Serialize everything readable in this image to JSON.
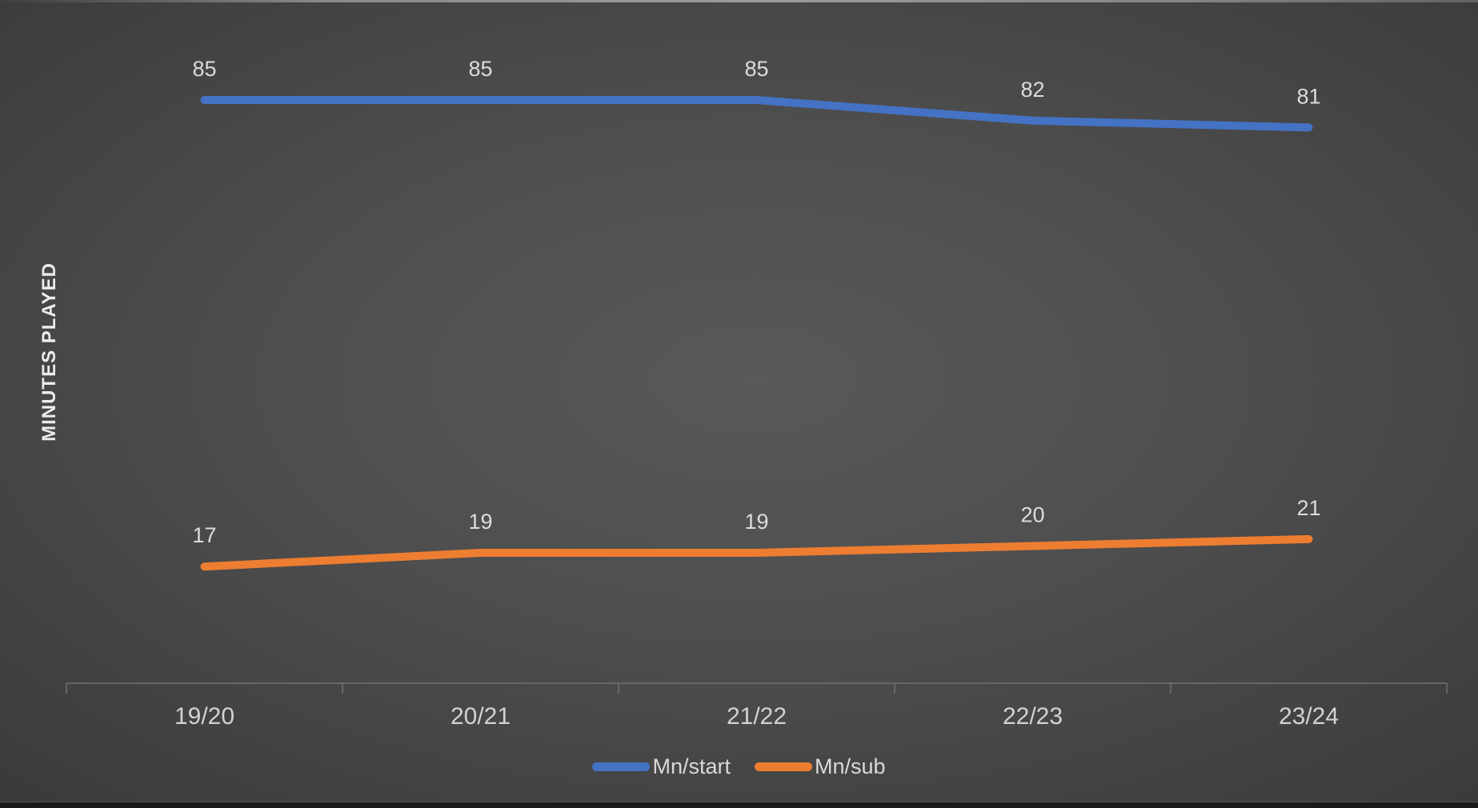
{
  "chart_data": {
    "type": "line",
    "categories": [
      "19/20",
      "20/21",
      "21/22",
      "22/23",
      "23/24"
    ],
    "series": [
      {
        "name": "Mn/start",
        "color": "#4472C4",
        "values": [
          85,
          85,
          85,
          82,
          81
        ]
      },
      {
        "name": "Mn/sub",
        "color": "#ED7D31",
        "values": [
          17,
          19,
          19,
          20,
          21
        ]
      }
    ],
    "title": "",
    "ylabel": "MINUTES PLAYED",
    "ylim": [
      0,
      100
    ],
    "grid": false,
    "data_labels": true,
    "legend_position": "bottom",
    "colors": {
      "data_label": "#DCDCDC",
      "axis_label": "#D2D2D2",
      "legend_text": "#D9D9D9",
      "axis_line": "#707070",
      "y_title": "#ECECEC",
      "background_center": "#585858",
      "background_edge": "#232323"
    }
  }
}
